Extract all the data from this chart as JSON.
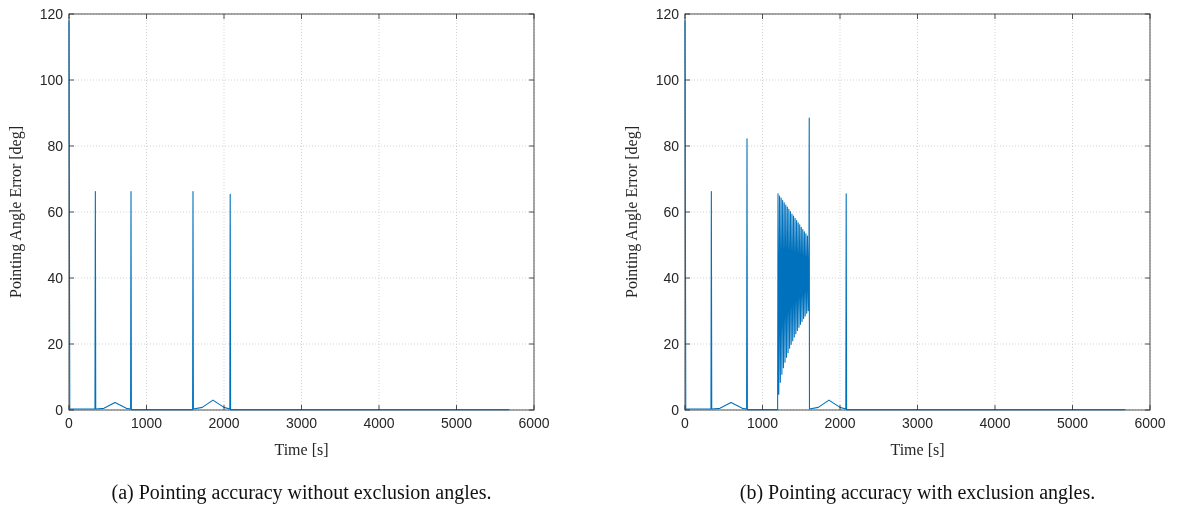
{
  "chart_data": [
    {
      "type": "line",
      "title": "(a) Pointing accuracy without exclusion angles.",
      "xlabel": "Time [s]",
      "ylabel": "Pointing Angle Error [deg]",
      "xlim": [
        0,
        6000
      ],
      "xticks": [
        0,
        1000,
        2000,
        3000,
        4000,
        5000,
        6000
      ],
      "ylim": [
        0,
        120
      ],
      "yticks": [
        0,
        20,
        40,
        60,
        80,
        100,
        120
      ],
      "grid": true,
      "marker": "none",
      "line_style": "solid",
      "series": [
        {
          "color": "#0072bd",
          "x": [
            0,
            10,
            335,
            340,
            345,
            450,
            594,
            740,
            795,
            800,
            805,
            1595,
            1600,
            1605,
            1720,
            1857,
            2000,
            2075,
            2080,
            2085,
            5680
          ],
          "values": [
            118,
            0.3,
            0.3,
            66.2,
            0.3,
            0.5,
            2.3,
            0.5,
            0.3,
            66.2,
            0.1,
            0.1,
            66.2,
            0.3,
            0.8,
            3.0,
            0.8,
            0.3,
            65.4,
            0.1,
            0.1
          ]
        }
      ]
    },
    {
      "type": "line",
      "title": "(b) Pointing accuracy with exclusion angles.",
      "xlabel": "Time [s]",
      "ylabel": "Pointing Angle Error [deg]",
      "xlim": [
        0,
        6000
      ],
      "xticks": [
        0,
        1000,
        2000,
        3000,
        4000,
        5000,
        6000
      ],
      "ylim": [
        0,
        120
      ],
      "yticks": [
        0,
        20,
        40,
        60,
        80,
        100,
        120
      ],
      "grid": true,
      "marker": "none",
      "line_style": "solid",
      "series": [
        {
          "color": "#0072bd",
          "x": [
            0,
            10,
            335,
            340,
            345,
            450,
            594,
            740,
            795,
            800,
            805,
            1195,
            1200,
            1210,
            1220,
            1230,
            1240,
            1250,
            1260,
            1270,
            1280,
            1290,
            1300,
            1310,
            1320,
            1330,
            1340,
            1350,
            1360,
            1370,
            1380,
            1390,
            1400,
            1410,
            1420,
            1430,
            1440,
            1450,
            1460,
            1470,
            1480,
            1490,
            1500,
            1510,
            1520,
            1530,
            1540,
            1550,
            1560,
            1570,
            1580,
            1590,
            1600,
            1603,
            1606,
            1720,
            1857,
            2000,
            2075,
            2080,
            2085,
            5680
          ],
          "values": [
            118,
            0.3,
            0.3,
            66.2,
            0.3,
            0.5,
            2.3,
            0.5,
            0.3,
            82.2,
            0.1,
            0.1,
            65.5,
            4.8,
            64.8,
            8.4,
            64.2,
            10.8,
            63.5,
            12.8,
            62.8,
            14.5,
            62.1,
            16.0,
            61.5,
            17.4,
            60.8,
            18.7,
            60.1,
            19.9,
            59.4,
            21.0,
            58.8,
            22.1,
            58.1,
            23.1,
            57.4,
            24.1,
            56.7,
            25.1,
            56.1,
            26.0,
            55.4,
            26.8,
            54.7,
            27.7,
            54.0,
            28.5,
            53.4,
            29.3,
            52.7,
            30.1,
            52.0,
            88.5,
            0.3,
            0.8,
            3.0,
            0.8,
            0.3,
            65.5,
            0.1,
            0.1
          ]
        }
      ]
    }
  ]
}
